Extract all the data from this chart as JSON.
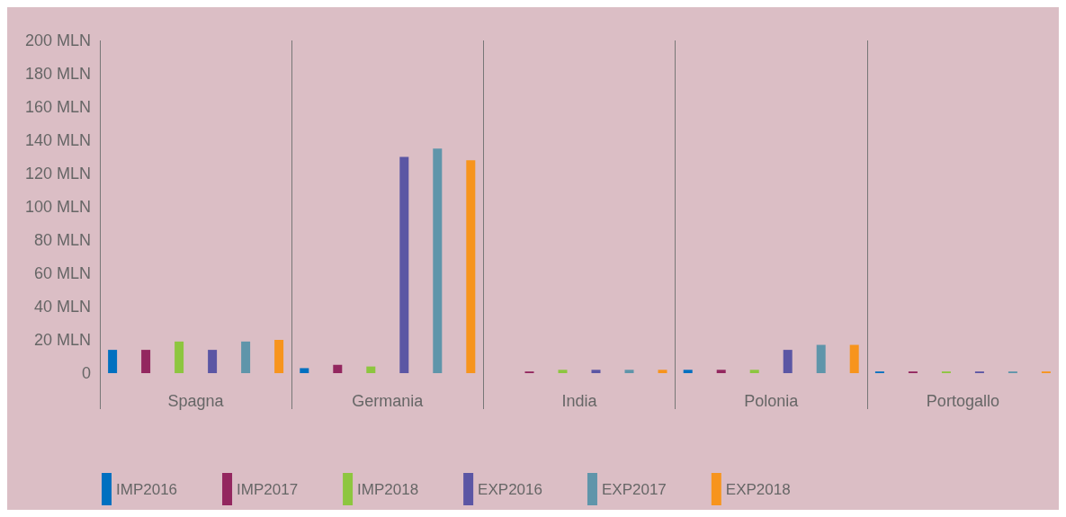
{
  "chart_data": {
    "type": "bar",
    "categories": [
      "Spagna",
      "Germania",
      "India",
      "Polonia",
      "Portogallo"
    ],
    "series": [
      {
        "name": "IMP2016",
        "color": "#0070c0",
        "values": [
          14,
          3,
          0,
          2,
          1
        ]
      },
      {
        "name": "IMP2017",
        "color": "#93275f",
        "values": [
          14,
          5,
          1,
          2,
          1
        ]
      },
      {
        "name": "IMP2018",
        "color": "#8dc63f",
        "values": [
          19,
          4,
          2,
          2,
          1
        ]
      },
      {
        "name": "EXP2016",
        "color": "#5b56a4",
        "values": [
          14,
          130,
          2,
          14,
          1
        ]
      },
      {
        "name": "EXP2017",
        "color": "#5f95aa",
        "values": [
          19,
          135,
          2,
          17,
          1
        ]
      },
      {
        "name": "EXP2018",
        "color": "#f7941d",
        "values": [
          20,
          128,
          2,
          17,
          1
        ]
      }
    ],
    "ylim": [
      0,
      200
    ],
    "yticks": [
      {
        "value": 0,
        "label": "0"
      },
      {
        "value": 20,
        "label": "20 MLN"
      },
      {
        "value": 40,
        "label": "40 MLN"
      },
      {
        "value": 60,
        "label": "60 MLN"
      },
      {
        "value": 80,
        "label": "80 MLN"
      },
      {
        "value": 100,
        "label": "100 MLN"
      },
      {
        "value": 120,
        "label": "120 MLN"
      },
      {
        "value": 140,
        "label": "140 MLN"
      },
      {
        "value": 160,
        "label": "160 MLN"
      },
      {
        "value": 180,
        "label": "180 MLN"
      },
      {
        "value": 200,
        "label": "200 MLN"
      }
    ],
    "grid": false,
    "legend": "bottom left"
  }
}
